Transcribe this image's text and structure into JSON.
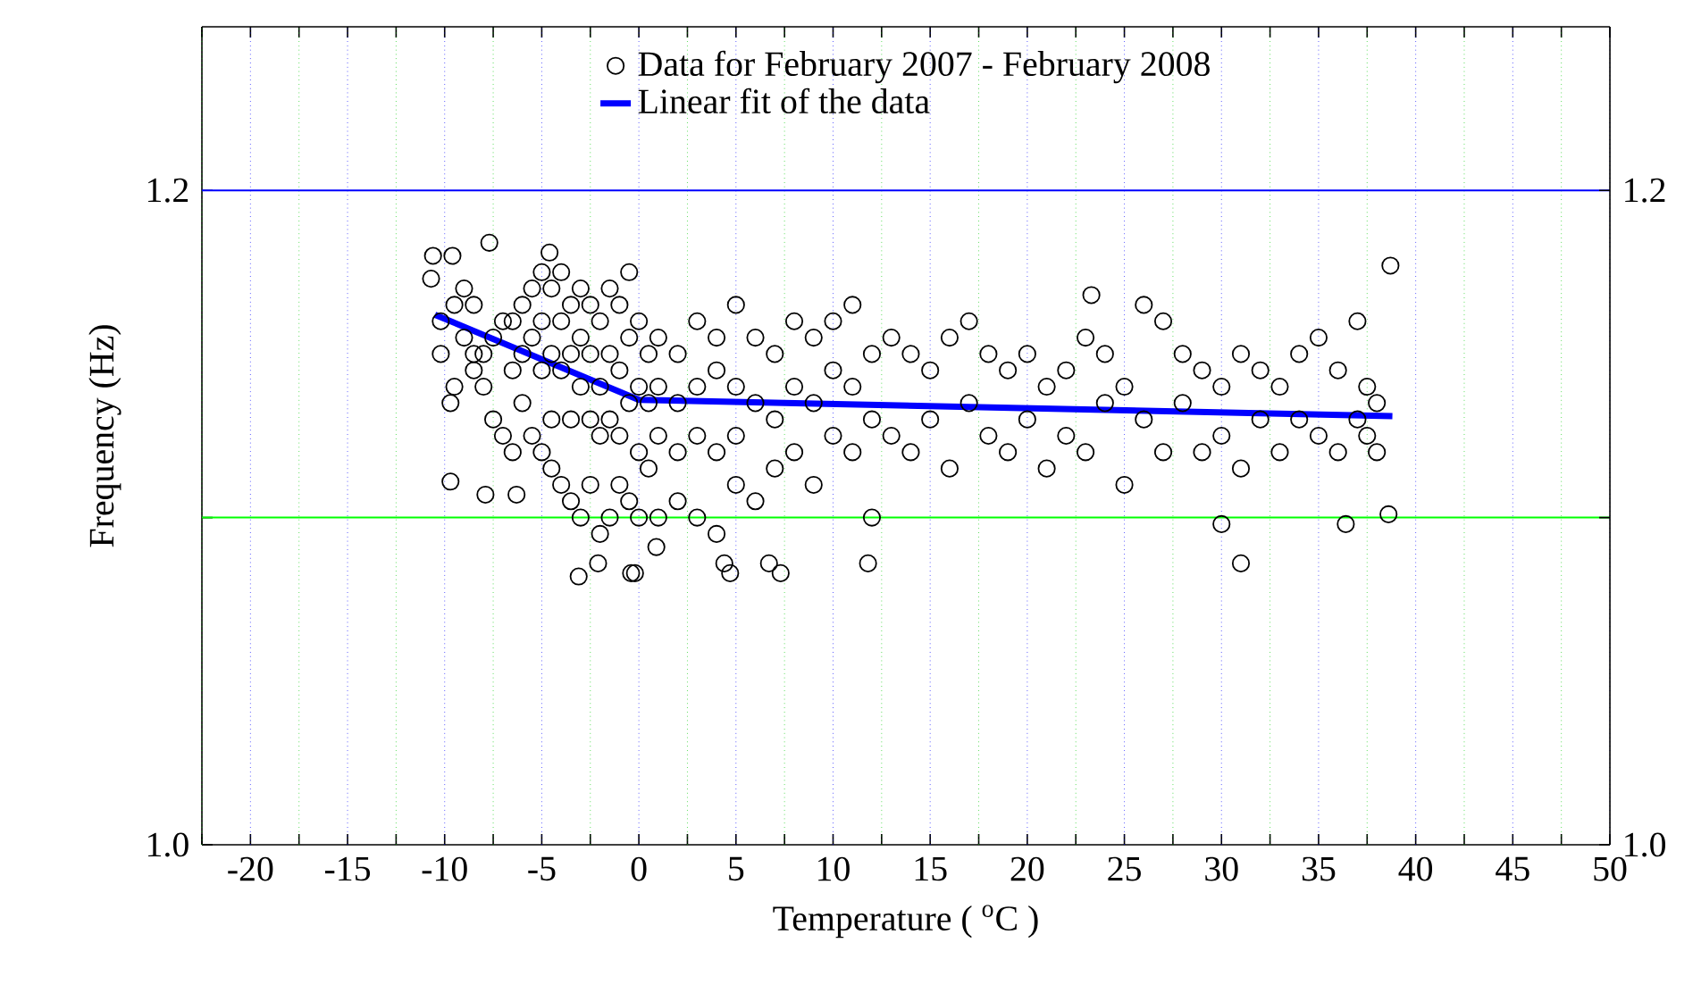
{
  "chart_data": {
    "type": "scatter",
    "xlabel": "Temperature ( $^{o}$C )",
    "ylabel": "Frequency (Hz)",
    "xlim": [
      -22.5,
      50
    ],
    "ylim": [
      1.0,
      1.25
    ],
    "y2lim": [
      1.0,
      1.25
    ],
    "xticks": [
      {
        "value": -22.5,
        "label": null
      },
      -20,
      {
        "value": -17.5,
        "label": null
      },
      -15,
      {
        "value": -12.5,
        "label": null
      },
      -10,
      {
        "value": -7.5,
        "label": null
      },
      -5,
      {
        "value": -2.5,
        "label": null
      },
      0,
      {
        "value": 2.5,
        "label": null
      },
      5,
      {
        "value": 7.5,
        "label": null
      },
      10,
      {
        "value": 12.5,
        "label": null
      },
      15,
      {
        "value": 17.5,
        "label": null
      },
      20,
      {
        "value": 22.5,
        "label": null
      },
      25,
      {
        "value": 27.5,
        "label": null
      },
      30,
      {
        "value": 32.5,
        "label": null
      },
      35,
      {
        "value": 37.5,
        "label": null
      },
      40,
      {
        "value": 42.5,
        "label": null
      },
      45,
      {
        "value": 47.5,
        "label": null
      },
      50
    ],
    "yticks": [
      {
        "value": 1.0,
        "label": "1.0"
      },
      {
        "value": 1.1,
        "label": null
      },
      {
        "value": 1.2,
        "label": "1.2"
      }
    ],
    "y2ticks": [
      {
        "value": 1.0,
        "label": "1.0"
      },
      {
        "value": 1.1,
        "label": null
      },
      {
        "value": 1.2,
        "label": "1.2"
      }
    ],
    "grid": "x",
    "legend": "top",
    "ref_lines": [
      {
        "axis": "y",
        "value": 1.2,
        "color": "#0000ff",
        "line_style": "solid"
      },
      {
        "axis": "y",
        "value": 1.1,
        "color": "#00ff00",
        "line_style": "solid"
      }
    ],
    "series": [
      {
        "name": "Data for February 2007 - February 2008",
        "marker": "circle",
        "color": "#000000",
        "x": [
          -10.7,
          -10.6,
          -9.6,
          -7.7,
          -4.6,
          -9.7,
          -9.7,
          -7.9,
          -6.3,
          -2.1,
          -3.1,
          -0.4,
          -0.2,
          0.9,
          7.3,
          6.7,
          4.4,
          4.7,
          11.8,
          31.0,
          38.7,
          23.3,
          38.6,
          36.4,
          30.0,
          -10.2,
          -10.2,
          -9.5,
          -9.5,
          -9.0,
          -9.0,
          -8.5,
          -8.5,
          -8.5,
          -8.0,
          -8.0,
          -7.5,
          -7.5,
          -7.0,
          -7.0,
          -6.5,
          -6.5,
          -6.5,
          -6.0,
          -6.0,
          -6.0,
          -5.5,
          -5.5,
          -5.5,
          -5.0,
          -5.0,
          -5.0,
          -5.0,
          -4.5,
          -4.5,
          -4.5,
          -4.5,
          -4.0,
          -4.0,
          -4.0,
          -4.0,
          -3.5,
          -3.5,
          -3.5,
          -3.5,
          -3.0,
          -3.0,
          -3.0,
          -3.0,
          -2.5,
          -2.5,
          -2.5,
          -2.5,
          -2.0,
          -2.0,
          -2.0,
          -2.0,
          -1.5,
          -1.5,
          -1.5,
          -1.5,
          -1.0,
          -1.0,
          -1.0,
          -1.0,
          -0.5,
          -0.5,
          -0.5,
          -0.5,
          0.0,
          0.0,
          0.0,
          0.0,
          0.5,
          0.5,
          0.5,
          1.0,
          1.0,
          1.0,
          1.0,
          2.0,
          2.0,
          2.0,
          2.0,
          3.0,
          3.0,
          3.0,
          3.0,
          4.0,
          4.0,
          4.0,
          4.0,
          5.0,
          5.0,
          5.0,
          5.0,
          6.0,
          6.0,
          6.0,
          7.0,
          7.0,
          7.0,
          8.0,
          8.0,
          8.0,
          9.0,
          9.0,
          9.0,
          10.0,
          10.0,
          10.0,
          11.0,
          11.0,
          11.0,
          12.0,
          12.0,
          12.0,
          13.0,
          13.0,
          14.0,
          14.0,
          15.0,
          15.0,
          16.0,
          16.0,
          17.0,
          17.0,
          18.0,
          18.0,
          19.0,
          19.0,
          20.0,
          20.0,
          21.0,
          21.0,
          22.0,
          22.0,
          23.0,
          23.0,
          24.0,
          24.0,
          25.0,
          25.0,
          26.0,
          26.0,
          27.0,
          27.0,
          28.0,
          28.0,
          29.0,
          29.0,
          30.0,
          30.0,
          31.0,
          31.0,
          32.0,
          32.0,
          33.0,
          33.0,
          34.0,
          34.0,
          35.0,
          35.0,
          36.0,
          36.0,
          37.0,
          37.0,
          37.5,
          37.5,
          38.0,
          38.0
        ],
        "values": [
          1.173,
          1.18,
          1.18,
          1.184,
          1.181,
          1.135,
          1.111,
          1.107,
          1.107,
          1.086,
          1.082,
          1.083,
          1.083,
          1.091,
          1.083,
          1.086,
          1.086,
          1.083,
          1.086,
          1.086,
          1.177,
          1.168,
          1.101,
          1.098,
          1.098,
          1.16,
          1.15,
          1.165,
          1.14,
          1.17,
          1.155,
          1.15,
          1.145,
          1.165,
          1.15,
          1.14,
          1.155,
          1.13,
          1.16,
          1.125,
          1.16,
          1.145,
          1.12,
          1.165,
          1.15,
          1.135,
          1.17,
          1.155,
          1.125,
          1.175,
          1.16,
          1.145,
          1.12,
          1.17,
          1.15,
          1.13,
          1.115,
          1.175,
          1.16,
          1.145,
          1.11,
          1.165,
          1.15,
          1.13,
          1.105,
          1.17,
          1.155,
          1.14,
          1.1,
          1.165,
          1.15,
          1.13,
          1.11,
          1.16,
          1.14,
          1.125,
          1.095,
          1.17,
          1.15,
          1.13,
          1.1,
          1.165,
          1.145,
          1.125,
          1.11,
          1.175,
          1.155,
          1.135,
          1.105,
          1.16,
          1.14,
          1.12,
          1.1,
          1.15,
          1.135,
          1.115,
          1.155,
          1.14,
          1.125,
          1.1,
          1.15,
          1.135,
          1.12,
          1.105,
          1.16,
          1.14,
          1.125,
          1.1,
          1.155,
          1.145,
          1.12,
          1.095,
          1.165,
          1.14,
          1.125,
          1.11,
          1.155,
          1.135,
          1.105,
          1.15,
          1.13,
          1.115,
          1.16,
          1.14,
          1.12,
          1.155,
          1.135,
          1.11,
          1.16,
          1.145,
          1.125,
          1.165,
          1.14,
          1.12,
          1.15,
          1.13,
          1.1,
          1.155,
          1.125,
          1.15,
          1.12,
          1.145,
          1.13,
          1.155,
          1.115,
          1.16,
          1.135,
          1.15,
          1.125,
          1.145,
          1.12,
          1.15,
          1.13,
          1.14,
          1.115,
          1.145,
          1.125,
          1.155,
          1.12,
          1.15,
          1.135,
          1.14,
          1.11,
          1.165,
          1.13,
          1.16,
          1.12,
          1.15,
          1.135,
          1.145,
          1.12,
          1.14,
          1.125,
          1.15,
          1.115,
          1.145,
          1.13,
          1.14,
          1.12,
          1.15,
          1.13,
          1.155,
          1.125,
          1.145,
          1.12,
          1.16,
          1.13,
          1.14,
          1.125,
          1.12,
          1.135
        ]
      },
      {
        "name": "Linear fit of the data",
        "type": "line",
        "color": "#0000ff",
        "marker": "none",
        "line_style": "solid",
        "x": [
          -10.5,
          0,
          38.8
        ],
        "values": [
          1.162,
          1.136,
          1.131
        ]
      }
    ]
  }
}
